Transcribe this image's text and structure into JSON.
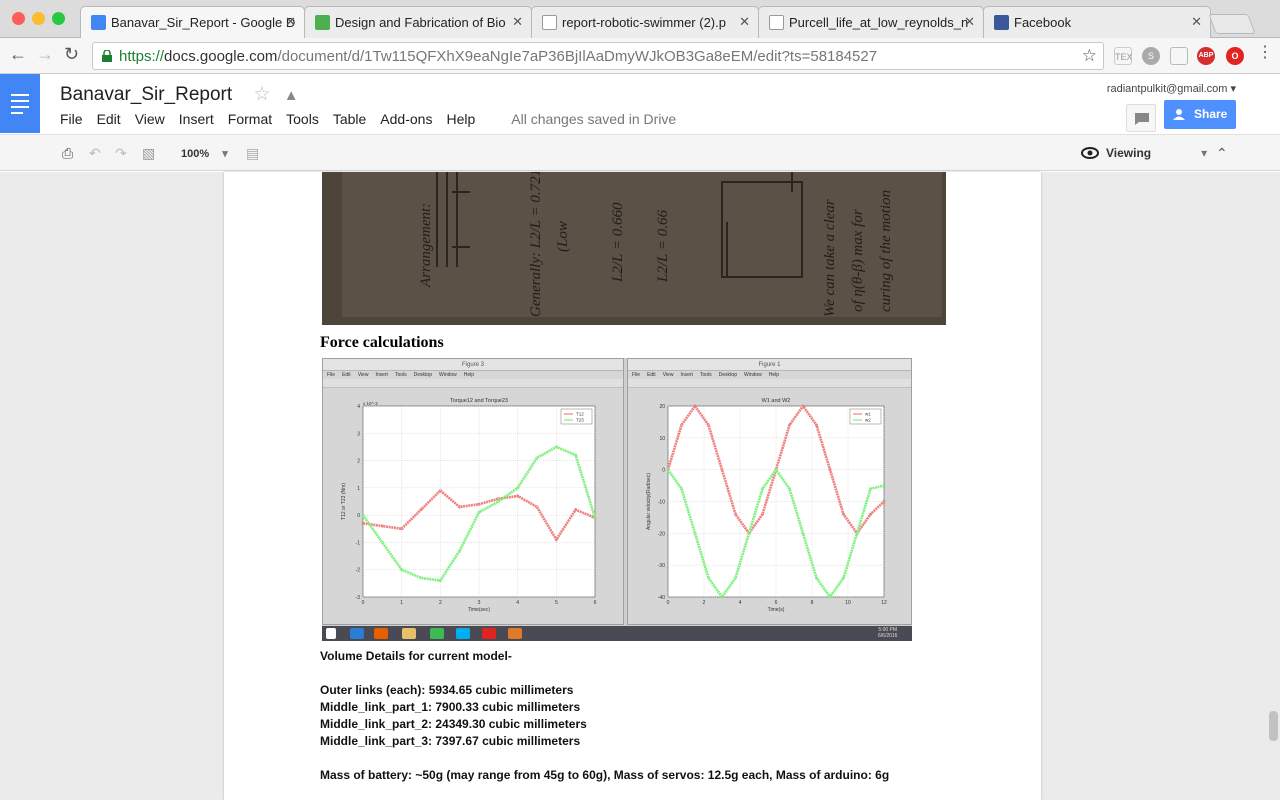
{
  "browser": {
    "tabs": [
      {
        "title": "Banavar_Sir_Report - Google D",
        "icon": "docs-icon",
        "color": "#4285f4",
        "active": true
      },
      {
        "title": "Design and Fabrication of Bio",
        "icon": "leaf-icon",
        "color": "#4caf50",
        "active": false
      },
      {
        "title": "report-robotic-swimmer (2).p",
        "icon": "file-icon",
        "color": "#ffffff",
        "active": false
      },
      {
        "title": "Purcell_life_at_low_reynolds_n",
        "icon": "jila-icon",
        "color": "#ffffff",
        "active": false
      },
      {
        "title": "Facebook",
        "icon": "facebook-icon",
        "color": "#3b5998",
        "active": false
      }
    ],
    "url_scheme": "https://",
    "url_host": "docs.google.com",
    "url_path": "/document/d/1Tw115QFXhX9eaNgIe7aP36BjIlAaDmyWJkOB3Ga8eEM/edit?ts=58184527",
    "extensions": [
      {
        "icon": "tex-icon",
        "label": "TEX"
      },
      {
        "icon": "skype-icon",
        "label": "S"
      },
      {
        "icon": "reader-icon",
        "label": ""
      },
      {
        "icon": "adblock-icon",
        "label": "ABP"
      },
      {
        "icon": "opera-icon",
        "label": "O"
      }
    ]
  },
  "docs": {
    "title": "Banavar_Sir_Report",
    "menu": [
      "File",
      "Edit",
      "View",
      "Insert",
      "Format",
      "Tools",
      "Table",
      "Add-ons",
      "Help"
    ],
    "saved_status": "All changes saved in Drive",
    "account": "radiantpulkit@gmail.com",
    "share_label": "Share",
    "zoom": "100%",
    "mode": "Viewing"
  },
  "document": {
    "heading": "Force calculations",
    "volume_title": "Volume Details for current model-",
    "volume_lines": [
      "Outer links (each):  5934.65 cubic millimeters",
      "Middle_link_part_1:  7900.33 cubic millimeters",
      "Middle_link_part_2: 24349.30 cubic millimeters",
      "Middle_link_part_3: 7397.67 cubic millimeters"
    ],
    "mass_line": "Mass of battery: ~50g (may range from 45g to 60g), Mass of servos: 12.5g each, Mass of arduino: 6g"
  },
  "figures": {
    "menu": [
      "File",
      "Edit",
      "View",
      "Insert",
      "Tools",
      "Desktop",
      "Window",
      "Help"
    ],
    "taskbar_time": "5:00 PM",
    "taskbar_date": "6/6/2016"
  },
  "chart_data": [
    {
      "type": "line",
      "window_title": "Figure 3",
      "title": "Torque12 and Torque23",
      "xlabel": "Time(sec)",
      "ylabel": "T12 or T23 (Nm)",
      "y_multiplier": "x 10^-3",
      "xlim": [
        0,
        6
      ],
      "ylim": [
        -3,
        4
      ],
      "xticks": [
        0,
        1,
        2,
        3,
        4,
        5,
        6
      ],
      "yticks": [
        -3,
        -2,
        -1,
        0,
        1,
        2,
        3,
        4
      ],
      "grid": true,
      "legend": "top-right",
      "series": [
        {
          "name": "T12",
          "color": "#f08080",
          "x": [
            0,
            0.5,
            1,
            1.5,
            2,
            2.5,
            3,
            3.5,
            4,
            4.5,
            5,
            5.5,
            6
          ],
          "y": [
            -0.3,
            -0.4,
            -0.5,
            0.2,
            0.9,
            0.3,
            0.4,
            0.6,
            0.7,
            0.3,
            -0.9,
            0.2,
            -0.1
          ]
        },
        {
          "name": "T23",
          "color": "#80f080",
          "x": [
            0,
            0.5,
            1,
            1.5,
            2,
            2.5,
            3,
            3.5,
            4,
            4.5,
            5,
            5.5,
            6
          ],
          "y": [
            0,
            -1,
            -2,
            -2.3,
            -2.4,
            -1.3,
            0.1,
            0.5,
            1,
            2.1,
            2.5,
            2.2,
            -0.1
          ]
        }
      ]
    },
    {
      "type": "line",
      "window_title": "Figure 1",
      "title": "W1 and W2",
      "xlabel": "Time(s)",
      "ylabel": "Angular velocity(Rad/sec)",
      "xlim": [
        0,
        12
      ],
      "ylim": [
        -40,
        20
      ],
      "xticks": [
        0,
        2,
        4,
        6,
        8,
        10,
        12
      ],
      "yticks": [
        -40,
        -30,
        -20,
        -10,
        0,
        10,
        20
      ],
      "grid": true,
      "legend": "top-right",
      "series": [
        {
          "name": "w1",
          "color": "#f08080",
          "x": [
            0,
            0.75,
            1.5,
            2.25,
            3,
            3.75,
            4.5,
            5.25,
            6,
            6.75,
            7.5,
            8.25,
            9,
            9.75,
            10.5,
            11.25,
            12
          ],
          "y": [
            0,
            14,
            20,
            14,
            0,
            -14,
            -20,
            -14,
            0,
            14,
            20,
            14,
            0,
            -14,
            -20,
            -14,
            -10
          ]
        },
        {
          "name": "w2",
          "color": "#80f080",
          "x": [
            0,
            0.75,
            1.5,
            2.25,
            3,
            3.75,
            4.5,
            5.25,
            6,
            6.75,
            7.5,
            8.25,
            9,
            9.75,
            10.5,
            11.25,
            12
          ],
          "y": [
            0,
            -6,
            -20,
            -34,
            -40,
            -34,
            -20,
            -6,
            0,
            -6,
            -20,
            -34,
            -40,
            -34,
            -20,
            -6,
            -5
          ]
        }
      ]
    }
  ]
}
